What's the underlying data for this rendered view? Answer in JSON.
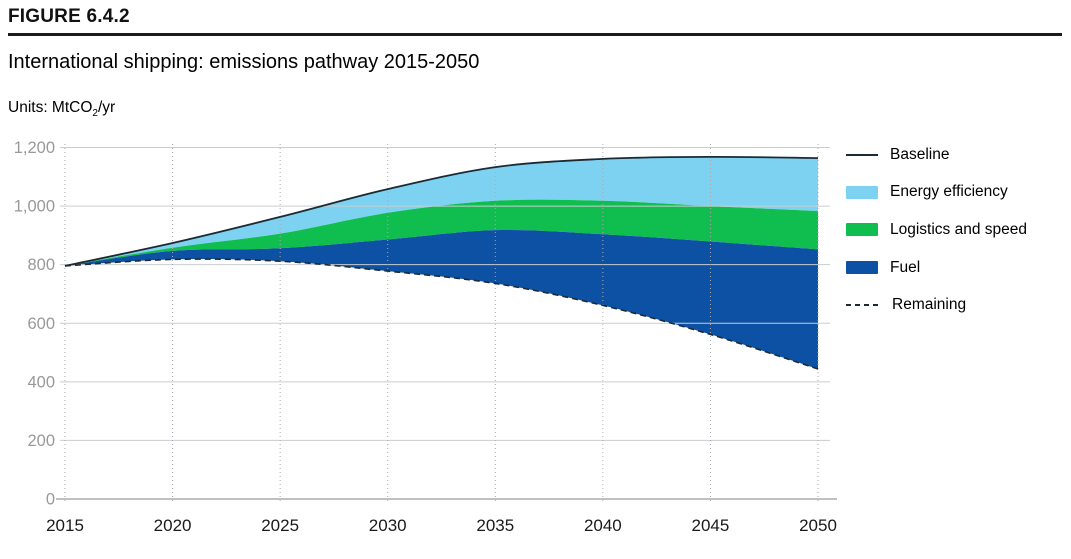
{
  "figure": {
    "label": "FIGURE 6.4.2",
    "title": "International shipping: emissions pathway 2015-2050",
    "units": {
      "prefix": "Units: MtCO",
      "subscript": "2",
      "suffix": "/yr"
    }
  },
  "legend": {
    "items": [
      {
        "label": "Baseline",
        "marker": "line",
        "color": "#1C2A33"
      },
      {
        "label": "Energy efficiency",
        "marker": "swatch",
        "color": "#7DD2F2"
      },
      {
        "label": "Logistics and speed",
        "marker": "swatch",
        "color": "#10BE50"
      },
      {
        "label": "Fuel",
        "marker": "swatch",
        "color": "#0D51A4"
      },
      {
        "label": "Remaining",
        "marker": "dashed-line",
        "color": "#1C2A33"
      }
    ]
  },
  "chart_data": {
    "type": "area",
    "title": "International shipping: emissions pathway 2015-2050",
    "ylabel": "MtCO2/yr",
    "x": [
      2015,
      2020,
      2025,
      2030,
      2035,
      2040,
      2045,
      2050
    ],
    "x_tick_labels": [
      "2015",
      "2020",
      "2025",
      "2030",
      "2035",
      "2040",
      "2045",
      "2050"
    ],
    "y_ticks": [
      0,
      200,
      400,
      600,
      800,
      1000,
      1200
    ],
    "y_tick_labels": [
      "0",
      "200",
      "400",
      "600",
      "800",
      "1,000",
      "1,200"
    ],
    "ylim": [
      0,
      1200
    ],
    "grid": {
      "horizontal": "solid",
      "vertical": "dotted"
    },
    "legend_position": "right",
    "boundaries": {
      "baseline": [
        796,
        874,
        963,
        1058,
        1133,
        1161,
        1168,
        1164
      ],
      "after_energy_efficiency": [
        796,
        858,
        906,
        977,
        1018,
        1018,
        1000,
        983
      ],
      "after_logistics_and_speed": [
        796,
        847,
        856,
        886,
        918,
        904,
        879,
        852
      ],
      "remaining": [
        796,
        818,
        812,
        778,
        736,
        661,
        562,
        444
      ]
    },
    "bands": [
      {
        "name": "Energy efficiency",
        "upper": "baseline",
        "lower": "after_energy_efficiency",
        "color": "#7DD2F2"
      },
      {
        "name": "Logistics and speed",
        "upper": "after_energy_efficiency",
        "lower": "after_logistics_and_speed",
        "color": "#10BE50"
      },
      {
        "name": "Fuel",
        "upper": "after_logistics_and_speed",
        "lower": "remaining",
        "color": "#0D51A4"
      }
    ],
    "lines": [
      {
        "name": "Baseline",
        "boundary": "baseline",
        "style": "solid",
        "color": "#1C2A33"
      },
      {
        "name": "Remaining",
        "boundary": "remaining",
        "style": "dashed",
        "color": "#1C2A33"
      }
    ],
    "colors": {
      "grid": "#C9CDD0",
      "axis": "#9B9B9B",
      "y_tick_label": "#97999B",
      "x_tick_label": "#1A1A1A"
    }
  }
}
